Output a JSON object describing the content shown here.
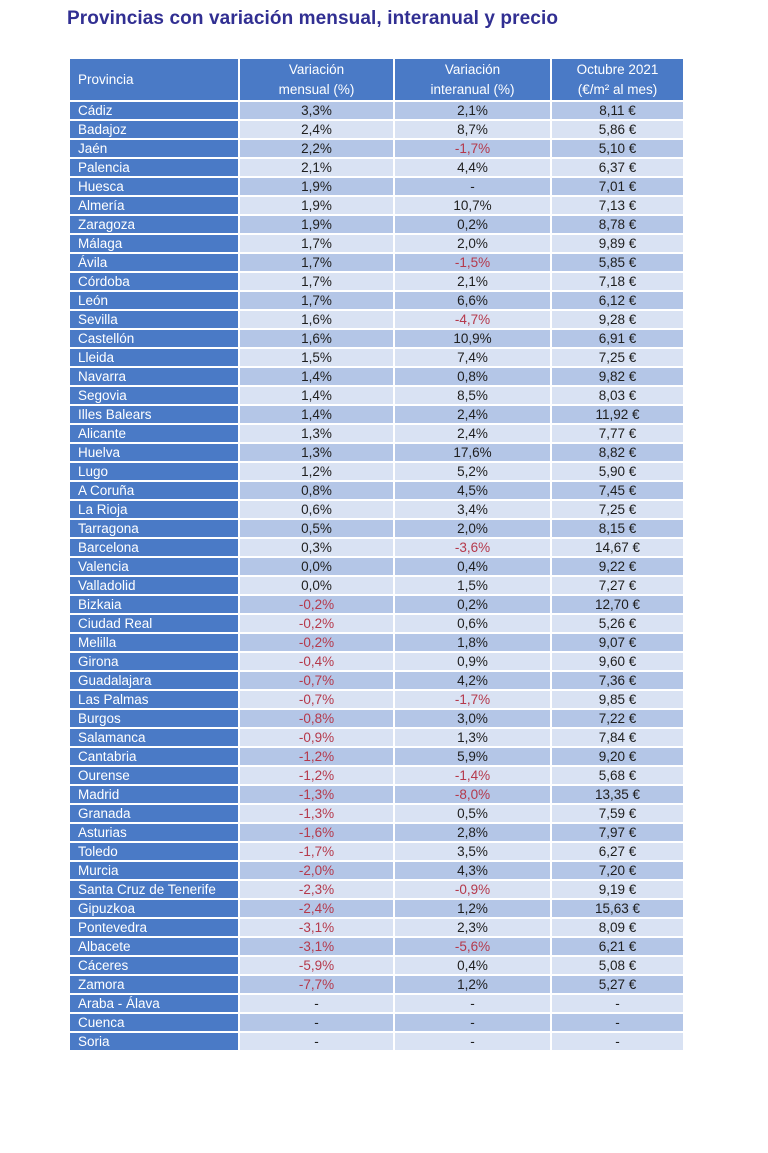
{
  "colors": {
    "title": "#312F92",
    "header-bg": "#4A7AC6",
    "header-text": "#FFFFFF",
    "band-a": "#B4C6E7",
    "band-b": "#D9E2F3",
    "text": "#1E1E1E",
    "negative": "#B5394B"
  },
  "chart_data": {
    "type": "table",
    "title": "Provincias con variación mensual, interanual y precio",
    "columns": [
      "Provincia",
      "Variación\nmensual (%)",
      "Variación\ninteranual (%)",
      "Octubre 2021\n(€/m² al mes)"
    ],
    "rows": [
      [
        "Cádiz",
        "3,3%",
        "2,1%",
        "8,11 €"
      ],
      [
        "Badajoz",
        "2,4%",
        "8,7%",
        "5,86 €"
      ],
      [
        "Jaén",
        "2,2%",
        "-1,7%",
        "5,10 €"
      ],
      [
        "Palencia",
        "2,1%",
        "4,4%",
        "6,37 €"
      ],
      [
        "Huesca",
        "1,9%",
        "-",
        "7,01 €"
      ],
      [
        "Almería",
        "1,9%",
        "10,7%",
        "7,13 €"
      ],
      [
        "Zaragoza",
        "1,9%",
        "0,2%",
        "8,78 €"
      ],
      [
        "Málaga",
        "1,7%",
        "2,0%",
        "9,89 €"
      ],
      [
        "Ávila",
        "1,7%",
        "-1,5%",
        "5,85 €"
      ],
      [
        "Córdoba",
        "1,7%",
        "2,1%",
        "7,18 €"
      ],
      [
        "León",
        "1,7%",
        "6,6%",
        "6,12 €"
      ],
      [
        "Sevilla",
        "1,6%",
        "-4,7%",
        "9,28 €"
      ],
      [
        "Castellón",
        "1,6%",
        "10,9%",
        "6,91 €"
      ],
      [
        "Lleida",
        "1,5%",
        "7,4%",
        "7,25 €"
      ],
      [
        "Navarra",
        "1,4%",
        "0,8%",
        "9,82 €"
      ],
      [
        "Segovia",
        "1,4%",
        "8,5%",
        "8,03 €"
      ],
      [
        "Illes Balears",
        "1,4%",
        "2,4%",
        "11,92 €"
      ],
      [
        "Alicante",
        "1,3%",
        "2,4%",
        "7,77 €"
      ],
      [
        "Huelva",
        "1,3%",
        "17,6%",
        "8,82 €"
      ],
      [
        "Lugo",
        "1,2%",
        "5,2%",
        "5,90 €"
      ],
      [
        "A Coruña",
        "0,8%",
        "4,5%",
        "7,45 €"
      ],
      [
        "La Rioja",
        "0,6%",
        "3,4%",
        "7,25 €"
      ],
      [
        "Tarragona",
        "0,5%",
        "2,0%",
        "8,15 €"
      ],
      [
        "Barcelona",
        "0,3%",
        "-3,6%",
        "14,67 €"
      ],
      [
        "Valencia",
        "0,0%",
        "0,4%",
        "9,22 €"
      ],
      [
        "Valladolid",
        "0,0%",
        "1,5%",
        "7,27 €"
      ],
      [
        "Bizkaia",
        "-0,2%",
        "0,2%",
        "12,70 €"
      ],
      [
        "Ciudad Real",
        "-0,2%",
        "0,6%",
        "5,26 €"
      ],
      [
        "Melilla",
        "-0,2%",
        "1,8%",
        "9,07 €"
      ],
      [
        "Girona",
        "-0,4%",
        "0,9%",
        "9,60 €"
      ],
      [
        "Guadalajara",
        "-0,7%",
        "4,2%",
        "7,36 €"
      ],
      [
        "Las Palmas",
        "-0,7%",
        "-1,7%",
        "9,85 €"
      ],
      [
        "Burgos",
        "-0,8%",
        "3,0%",
        "7,22 €"
      ],
      [
        "Salamanca",
        "-0,9%",
        "1,3%",
        "7,84 €"
      ],
      [
        "Cantabria",
        "-1,2%",
        "5,9%",
        "9,20 €"
      ],
      [
        "Ourense",
        "-1,2%",
        "-1,4%",
        "5,68 €"
      ],
      [
        "Madrid",
        "-1,3%",
        "-8,0%",
        "13,35 €"
      ],
      [
        "Granada",
        "-1,3%",
        "0,5%",
        "7,59 €"
      ],
      [
        "Asturias",
        "-1,6%",
        "2,8%",
        "7,97 €"
      ],
      [
        "Toledo",
        "-1,7%",
        "3,5%",
        "6,27 €"
      ],
      [
        "Murcia",
        "-2,0%",
        "4,3%",
        "7,20 €"
      ],
      [
        "Santa Cruz de Tenerife",
        "-2,3%",
        "-0,9%",
        "9,19 €"
      ],
      [
        "Gipuzkoa",
        "-2,4%",
        "1,2%",
        "15,63 €"
      ],
      [
        "Pontevedra",
        "-3,1%",
        "2,3%",
        "8,09 €"
      ],
      [
        "Albacete",
        "-3,1%",
        "-5,6%",
        "6,21 €"
      ],
      [
        "Cáceres",
        "-5,9%",
        "0,4%",
        "5,08 €"
      ],
      [
        "Zamora",
        "-7,7%",
        "1,2%",
        "5,27 €"
      ],
      [
        "Araba - Álava",
        "-",
        "-",
        "-"
      ],
      [
        "Cuenca",
        "-",
        "-",
        "-"
      ],
      [
        "Soria",
        "-",
        "-",
        "-"
      ]
    ]
  }
}
